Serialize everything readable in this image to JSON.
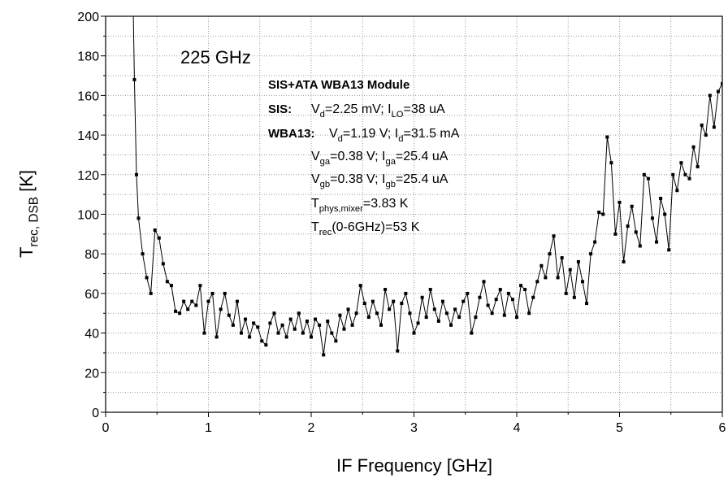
{
  "chart_data": {
    "type": "line",
    "annotation": "225 GHz",
    "notes_title": "SIS+ATA WBA13 Module",
    "notes": [
      {
        "label": "SIS:",
        "parts": [
          "V",
          "d",
          "=2.25 mV; I",
          "LO",
          "=38 uA"
        ]
      },
      {
        "label": "WBA13:",
        "parts": [
          "V",
          "d",
          "=1.19 V; I",
          "d",
          "=31.5 mA"
        ]
      },
      {
        "parts": [
          "V",
          "ga",
          "=0.38 V; I",
          "ga",
          "=25.4 uA"
        ]
      },
      {
        "parts": [
          "V",
          "gb",
          "=0.38 V; I",
          "gb",
          "=25.4 uA"
        ]
      },
      {
        "parts": [
          "T",
          "phys,mixer",
          "=3.83 K"
        ]
      },
      {
        "parts": [
          "T",
          "rec",
          "(0-6GHz)=53 K"
        ]
      }
    ],
    "xlabel": "IF Frequency [GHz]",
    "ylabel_parts": [
      "T",
      "rec, DSB",
      " [K]"
    ],
    "xlim": [
      0,
      6
    ],
    "xticks": [
      0,
      1,
      2,
      3,
      4,
      5,
      6
    ],
    "ylim": [
      0,
      200
    ],
    "yticks": [
      0,
      20,
      40,
      60,
      80,
      100,
      120,
      140,
      160,
      180,
      200
    ],
    "grid": true,
    "minor_grid": true,
    "series": [
      {
        "color": "#000000",
        "x": [
          0.26,
          0.28,
          0.3,
          0.32,
          0.36,
          0.4,
          0.44,
          0.48,
          0.52,
          0.56,
          0.6,
          0.64,
          0.68,
          0.72,
          0.76,
          0.8,
          0.84,
          0.88,
          0.92,
          0.96,
          1.0,
          1.04,
          1.08,
          1.12,
          1.16,
          1.2,
          1.24,
          1.28,
          1.32,
          1.36,
          1.4,
          1.44,
          1.48,
          1.52,
          1.56,
          1.6,
          1.64,
          1.68,
          1.72,
          1.76,
          1.8,
          1.84,
          1.88,
          1.92,
          1.96,
          2.0,
          2.04,
          2.08,
          2.12,
          2.16,
          2.2,
          2.24,
          2.28,
          2.32,
          2.36,
          2.4,
          2.44,
          2.48,
          2.52,
          2.56,
          2.6,
          2.64,
          2.68,
          2.72,
          2.76,
          2.8,
          2.84,
          2.88,
          2.92,
          2.96,
          3.0,
          3.04,
          3.08,
          3.12,
          3.16,
          3.2,
          3.24,
          3.28,
          3.32,
          3.36,
          3.4,
          3.44,
          3.48,
          3.52,
          3.56,
          3.6,
          3.64,
          3.68,
          3.72,
          3.76,
          3.8,
          3.84,
          3.88,
          3.92,
          3.96,
          4.0,
          4.04,
          4.08,
          4.12,
          4.16,
          4.2,
          4.24,
          4.28,
          4.32,
          4.36,
          4.4,
          4.44,
          4.48,
          4.52,
          4.56,
          4.6,
          4.64,
          4.68,
          4.72,
          4.76,
          4.8,
          4.84,
          4.88,
          4.92,
          4.96,
          5.0,
          5.04,
          5.08,
          5.12,
          5.16,
          5.2,
          5.24,
          5.28,
          5.32,
          5.36,
          5.4,
          5.44,
          5.48,
          5.52,
          5.56,
          5.6,
          5.64,
          5.68,
          5.72,
          5.76,
          5.8,
          5.84,
          5.88,
          5.92,
          5.96,
          6.0
        ],
        "values": [
          230,
          168,
          120,
          98,
          80,
          68,
          60,
          92,
          88,
          75,
          66,
          64,
          51,
          50,
          56,
          52,
          56,
          54,
          64,
          40,
          56,
          60,
          38,
          52,
          60,
          49,
          44,
          56,
          40,
          47,
          38,
          45,
          43,
          36,
          34,
          45,
          50,
          40,
          44,
          38,
          47,
          42,
          50,
          40,
          46,
          38,
          47,
          44,
          29,
          46,
          40,
          36,
          49,
          42,
          52,
          44,
          50,
          64,
          55,
          48,
          56,
          50,
          44,
          62,
          52,
          56,
          31,
          55,
          60,
          50,
          40,
          45,
          58,
          48,
          62,
          52,
          46,
          56,
          50,
          44,
          52,
          48,
          56,
          60,
          40,
          48,
          58,
          66,
          54,
          50,
          57,
          62,
          49,
          60,
          57,
          48,
          64,
          62,
          50,
          58,
          66,
          74,
          68,
          80,
          89,
          68,
          78,
          60,
          72,
          58,
          76,
          66,
          55,
          80,
          86,
          101,
          100,
          139,
          126,
          90,
          106,
          76,
          94,
          104,
          91,
          84,
          120,
          118,
          98,
          86,
          108,
          100,
          82,
          120,
          112,
          126,
          120,
          118,
          134,
          124,
          145,
          140,
          160,
          144,
          162,
          166
        ]
      }
    ]
  }
}
